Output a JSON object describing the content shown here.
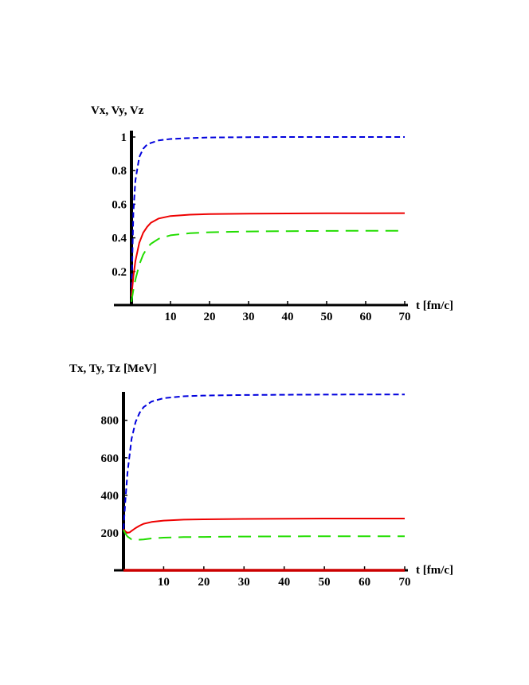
{
  "chart_data": [
    {
      "type": "line",
      "ylabel": "Vx,  Vy,  Vz",
      "xlabel": "t [fm/c]",
      "xlim": [
        0,
        70
      ],
      "ylim": [
        0,
        1.0
      ],
      "x_ticks": [
        "10",
        "20",
        "30",
        "40",
        "50",
        "60",
        "70"
      ],
      "y_ticks": [
        "0.2",
        "0.4",
        "0.6",
        "0.8",
        "1"
      ],
      "x_tick_values": [
        10,
        20,
        30,
        40,
        50,
        60,
        70
      ],
      "y_tick_values": [
        0.2,
        0.4,
        0.6,
        0.8,
        1.0
      ],
      "grid": false,
      "series": [
        {
          "color": "#0000dd",
          "style": "short-dash",
          "x": [
            0,
            0.5,
            1,
            2,
            3,
            4,
            5,
            7,
            10,
            15,
            20,
            30,
            40,
            50,
            60,
            70
          ],
          "y": [
            0.05,
            0.55,
            0.74,
            0.88,
            0.93,
            0.955,
            0.965,
            0.98,
            0.988,
            0.994,
            0.997,
            0.999,
            1.0,
            1.0,
            1.0,
            1.0
          ]
        },
        {
          "color": "#ee0000",
          "style": "solid",
          "x": [
            0,
            0.5,
            1,
            2,
            3,
            4,
            5,
            7,
            10,
            15,
            20,
            30,
            40,
            50,
            60,
            70
          ],
          "y": [
            0.05,
            0.17,
            0.26,
            0.37,
            0.43,
            0.465,
            0.49,
            0.515,
            0.53,
            0.538,
            0.541,
            0.544,
            0.545,
            0.546,
            0.546,
            0.547
          ]
        },
        {
          "color": "#22dd00",
          "style": "long-dash",
          "x": [
            0,
            0.5,
            1,
            2,
            3,
            4,
            5,
            7,
            10,
            15,
            20,
            30,
            40,
            50,
            60,
            70
          ],
          "y": [
            0.02,
            0.09,
            0.15,
            0.24,
            0.3,
            0.34,
            0.365,
            0.395,
            0.415,
            0.428,
            0.433,
            0.438,
            0.44,
            0.441,
            0.442,
            0.442
          ]
        }
      ]
    },
    {
      "type": "line",
      "ylabel": "Tx,  Ty,  Tz [MeV]",
      "xlabel": "t [fm/c]",
      "xlim": [
        0,
        70
      ],
      "ylim": [
        0,
        960
      ],
      "x_ticks": [
        "10",
        "20",
        "30",
        "40",
        "50",
        "60",
        "70"
      ],
      "y_ticks": [
        "200",
        "400",
        "600",
        "800"
      ],
      "x_tick_values": [
        10,
        20,
        30,
        40,
        50,
        60,
        70
      ],
      "y_tick_values": [
        200,
        400,
        600,
        800
      ],
      "grid": false,
      "series": [
        {
          "color": "#0000dd",
          "style": "short-dash",
          "x": [
            0,
            0.5,
            1,
            2,
            3,
            4,
            5,
            7,
            10,
            15,
            20,
            30,
            40,
            50,
            60,
            70
          ],
          "y": [
            220,
            380,
            520,
            700,
            790,
            840,
            870,
            900,
            918,
            928,
            932,
            935,
            936,
            937,
            938,
            938
          ]
        },
        {
          "color": "#ee0000",
          "style": "solid",
          "x": [
            0,
            0.5,
            1,
            1.5,
            2,
            3,
            4,
            5,
            7,
            10,
            15,
            20,
            30,
            40,
            50,
            60,
            70
          ],
          "y": [
            220,
            207,
            200,
            202,
            210,
            225,
            238,
            248,
            258,
            265,
            270,
            272,
            274,
            275,
            276,
            276,
            276
          ]
        },
        {
          "color": "#22dd00",
          "style": "long-dash",
          "x": [
            0,
            0.5,
            1,
            2,
            3,
            5,
            7,
            10,
            15,
            20,
            30,
            40,
            50,
            60,
            70
          ],
          "y": [
            215,
            195,
            180,
            165,
            162,
            165,
            170,
            174,
            177,
            178,
            180,
            181,
            182,
            182,
            182
          ]
        },
        {
          "color": "#cc0000",
          "style": "solid-thick",
          "x": [
            0,
            70
          ],
          "y": [
            0,
            0
          ]
        }
      ]
    }
  ]
}
